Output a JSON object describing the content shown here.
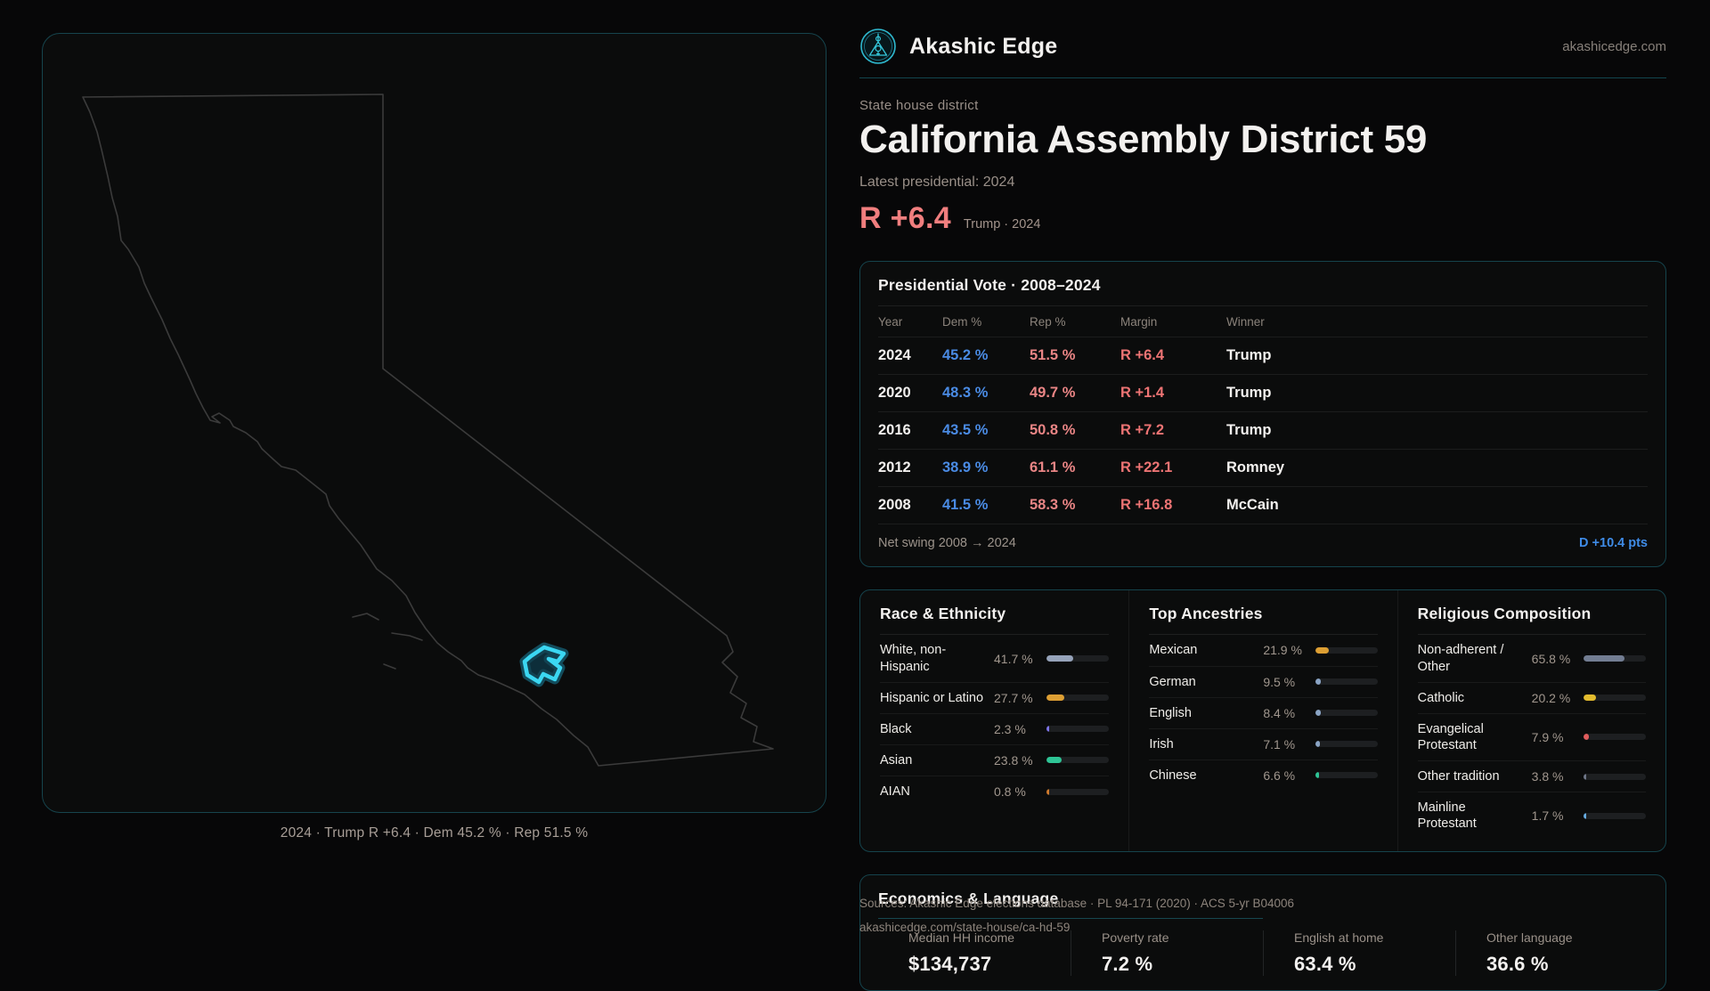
{
  "brand": {
    "name": "Akashic Edge",
    "site": "akashicedge.com"
  },
  "page": {
    "kicker": "State house district",
    "title": "California Assembly District 59",
    "latest": "Latest presidential: 2024",
    "margin_big": "R +6.4",
    "margin_note": "Trump · 2024"
  },
  "map": {
    "caption": "2024 · Trump R +6.4 · Dem 45.2 % · Rep 51.5 %",
    "district_color": "#3bd7f2",
    "outline_color": "#3b3b3b"
  },
  "vote_card": {
    "title": "Presidential Vote · 2008–2024",
    "columns": [
      "Year",
      "Dem %",
      "Rep %",
      "Margin",
      "Winner"
    ],
    "rows": [
      {
        "year": "2024",
        "dem": "45.2 %",
        "rep": "51.5 %",
        "margin": "R +6.4",
        "winner": "Trump"
      },
      {
        "year": "2020",
        "dem": "48.3 %",
        "rep": "49.7 %",
        "margin": "R +1.4",
        "winner": "Trump"
      },
      {
        "year": "2016",
        "dem": "43.5 %",
        "rep": "50.8 %",
        "margin": "R +7.2",
        "winner": "Trump"
      },
      {
        "year": "2012",
        "dem": "38.9 %",
        "rep": "61.1 %",
        "margin": "R +22.1",
        "winner": "Romney"
      },
      {
        "year": "2008",
        "dem": "41.5 %",
        "rep": "58.3 %",
        "margin": "R +16.8",
        "winner": "McCain"
      }
    ],
    "footer_label": "Net swing 2008 → 2024",
    "footer_value": "D +10.4 pts"
  },
  "demographics": {
    "race": {
      "title": "Race & Ethnicity",
      "rows": [
        {
          "label": "White, non-Hispanic",
          "value": 41.7,
          "display": "41.7 %",
          "color": "#96a3ba"
        },
        {
          "label": "Hispanic or Latino",
          "value": 27.7,
          "display": "27.7 %",
          "color": "#dd9f33"
        },
        {
          "label": "Black",
          "value": 2.3,
          "display": "2.3 %",
          "color": "#7d74e8"
        },
        {
          "label": "Asian",
          "value": 23.8,
          "display": "23.8 %",
          "color": "#2ec495"
        },
        {
          "label": "AIAN",
          "value": 0.8,
          "display": "0.8 %",
          "color": "#cf7a2c"
        }
      ]
    },
    "ancestries": {
      "title": "Top Ancestries",
      "rows": [
        {
          "label": "Mexican",
          "value": 21.9,
          "display": "21.9 %",
          "color": "#dd9f33"
        },
        {
          "label": "German",
          "value": 9.5,
          "display": "9.5 %",
          "color": "#8aa4c4"
        },
        {
          "label": "English",
          "value": 8.4,
          "display": "8.4 %",
          "color": "#8aa4c4"
        },
        {
          "label": "Irish",
          "value": 7.1,
          "display": "7.1 %",
          "color": "#8aa4c4"
        },
        {
          "label": "Chinese",
          "value": 6.6,
          "display": "6.6 %",
          "color": "#2ec495"
        }
      ]
    },
    "religion": {
      "title": "Religious Composition",
      "rows": [
        {
          "label": "Non-adherent / Other",
          "value": 65.8,
          "display": "65.8 %",
          "color": "#727d92"
        },
        {
          "label": "Catholic",
          "value": 20.2,
          "display": "20.2 %",
          "color": "#e3bc2e"
        },
        {
          "label": "Evangelical Protestant",
          "value": 7.9,
          "display": "7.9 %",
          "color": "#e05c5c"
        },
        {
          "label": "Other tradition",
          "value": 3.8,
          "display": "3.8 %",
          "color": "#6e7687"
        },
        {
          "label": "Mainline Protestant",
          "value": 1.7,
          "display": "1.7 %",
          "color": "#66abe0"
        }
      ]
    }
  },
  "economics": {
    "title": "Economics & Language",
    "stats": [
      {
        "label": "Median HH income",
        "value": "$134,737"
      },
      {
        "label": "Poverty rate",
        "value": "7.2 %"
      },
      {
        "label": "English at home",
        "value": "63.4 %"
      },
      {
        "label": "Other language",
        "value": "36.6 %"
      }
    ]
  },
  "sources": {
    "line1": "Sources: Akashic Edge elections database · PL 94-171 (2020) · ACS 5-yr B04006",
    "line2": "akashicedge.com/state-house/ca-hd-59"
  }
}
